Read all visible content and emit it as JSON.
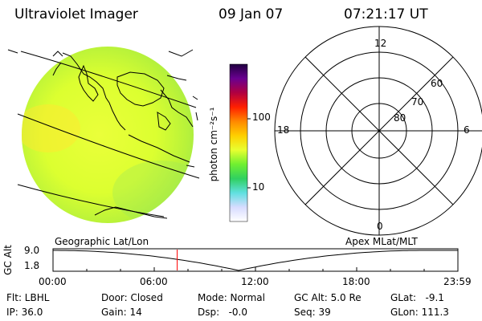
{
  "header": {
    "title": "Ultraviolet Imager",
    "date": "09 Jan 07",
    "time": "07:21:17 UT"
  },
  "colorbar": {
    "unit_label": "photon cm⁻²s⁻¹",
    "ticks": [
      "100",
      "10"
    ],
    "scale": "log",
    "colors": [
      "#ffffff",
      "#d7dcff",
      "#60e0e0",
      "#30d060",
      "#70f030",
      "#e8ff30",
      "#ffd000",
      "#ff8800",
      "#ff2000",
      "#b00040",
      "#6a0090",
      "#200040"
    ]
  },
  "polar_plot": {
    "mlt_labels": [
      "12",
      "18",
      "6",
      "0"
    ],
    "mlat_labels": [
      "60",
      "70",
      "80"
    ]
  },
  "altitude_panel": {
    "left_title": "Geographic Lat/Lon",
    "right_title": "Apex MLat/MLT",
    "axis_label": "GC Alt",
    "y_ticks": [
      "9.0",
      "1.8"
    ],
    "x_ticks": [
      "00:00",
      "06:00",
      "12:00",
      "18:00",
      "23:59"
    ],
    "current_marker_hour": 7.36,
    "marker_color": "#ff0000"
  },
  "footer": {
    "row1": {
      "filter": "Flt: LBHL",
      "door": "Door: Closed",
      "mode": "Mode: Normal",
      "gc_alt": "GC Alt: 5.0 Re",
      "glat": "GLat:   -9.1"
    },
    "row2": {
      "ip": "IP: 36.0",
      "gain": "Gain: 14",
      "dsp": "Dsp:   -0.0",
      "seq": "Seq: 39",
      "glon": "GLon: 111.3"
    }
  }
}
